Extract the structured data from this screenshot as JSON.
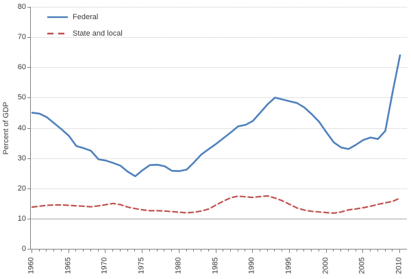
{
  "chart_data": {
    "type": "line",
    "title": "",
    "xlabel": "",
    "ylabel": "Percent of GDP",
    "ylim": [
      0,
      80
    ],
    "ytick_interval": 10,
    "y_tick_labels": [
      "0",
      "10",
      "20",
      "30",
      "40",
      "50",
      "60",
      "70",
      "80"
    ],
    "x_tick_labels": [
      "1960",
      "1965",
      "1970",
      "1975",
      "1980",
      "1985",
      "1990",
      "1995",
      "2000",
      "2005",
      "2010"
    ],
    "x_ticks_years": [
      1960,
      1965,
      1970,
      1975,
      1980,
      1985,
      1990,
      1995,
      2000,
      2005,
      2010
    ],
    "xlim": [
      1960,
      2010
    ],
    "grid": "horizontal, dotted gray; solid gray line at y=10",
    "legend_position": "top-left inside plot",
    "x": [
      1960,
      1961,
      1962,
      1963,
      1964,
      1965,
      1966,
      1967,
      1968,
      1969,
      1970,
      1971,
      1972,
      1973,
      1974,
      1975,
      1976,
      1977,
      1978,
      1979,
      1980,
      1981,
      1982,
      1983,
      1984,
      1985,
      1986,
      1987,
      1988,
      1989,
      1990,
      1991,
      1992,
      1993,
      1994,
      1995,
      1996,
      1997,
      1998,
      1999,
      2000,
      2001,
      2002,
      2003,
      2004,
      2005,
      2006,
      2007,
      2008,
      2009,
      2010
    ],
    "series": [
      {
        "name": "Federal",
        "color": "#4f81bd",
        "style": "solid",
        "values": [
          45.0,
          44.7,
          43.5,
          41.5,
          39.5,
          37.3,
          34.0,
          33.3,
          32.4,
          29.6,
          29.2,
          28.4,
          27.5,
          25.5,
          24.0,
          26.0,
          27.7,
          27.8,
          27.3,
          25.8,
          25.7,
          26.2,
          28.6,
          31.2,
          33.0,
          34.7,
          36.6,
          38.5,
          40.5,
          41.0,
          42.3,
          45.0,
          47.8,
          50.0,
          49.4,
          48.8,
          48.2,
          46.7,
          44.5,
          42.0,
          38.5,
          35.2,
          33.5,
          33.0,
          34.4,
          36.0,
          36.8,
          36.3,
          39.0,
          52.0,
          64.0
        ]
      },
      {
        "name": "State and local",
        "color": "#c0504d",
        "style": "dashed",
        "values": [
          13.8,
          14.1,
          14.4,
          14.5,
          14.5,
          14.4,
          14.2,
          14.1,
          13.9,
          14.2,
          14.6,
          15.0,
          14.6,
          13.8,
          13.3,
          12.9,
          12.6,
          12.6,
          12.5,
          12.3,
          12.1,
          11.9,
          12.1,
          12.5,
          13.2,
          14.5,
          15.8,
          16.9,
          17.4,
          17.2,
          17.0,
          17.3,
          17.5,
          16.8,
          15.9,
          14.7,
          13.5,
          12.8,
          12.4,
          12.2,
          12.0,
          11.8,
          12.2,
          12.9,
          13.2,
          13.6,
          14.1,
          14.7,
          15.2,
          15.7,
          16.8
        ]
      }
    ],
    "colors": {
      "gridline": "#c6c6c6",
      "solid_gridline": "#a6a6a6",
      "axis": "#7f7f7f",
      "text": "#3a3a3a"
    }
  }
}
